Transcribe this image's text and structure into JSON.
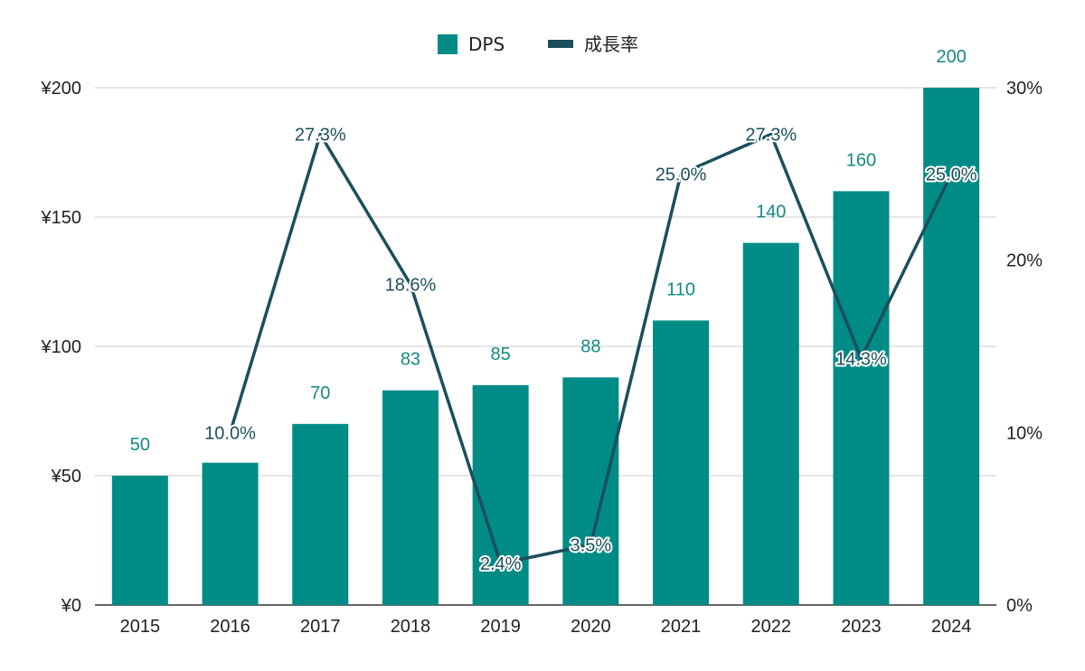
{
  "chart_data": {
    "type": "bar+line",
    "categories": [
      "2015",
      "2016",
      "2017",
      "2018",
      "2019",
      "2020",
      "2021",
      "2022",
      "2023",
      "2024"
    ],
    "series": [
      {
        "name": "DPS",
        "type": "bar",
        "axis": "left",
        "color": "#008c86",
        "values": [
          50,
          55,
          70,
          83,
          85,
          88,
          110,
          140,
          160,
          200
        ],
        "labels": [
          "50",
          "",
          "70",
          "83",
          "85",
          "88",
          "110",
          "140",
          "160",
          "200"
        ]
      },
      {
        "name": "成長率",
        "type": "line",
        "axis": "right",
        "color": "#1b4f5c",
        "values": [
          null,
          10.0,
          27.3,
          18.6,
          2.4,
          3.5,
          25.0,
          27.3,
          14.3,
          25.0
        ],
        "labels": [
          "",
          "10.0%",
          "27.3%",
          "18.6%",
          "2.4%",
          "3.5%",
          "25.0%",
          "27.3%",
          "14.3%",
          "25.0%"
        ]
      }
    ],
    "y_left": {
      "min": 0,
      "max": 200,
      "ticks": [
        0,
        50,
        100,
        150,
        200
      ],
      "tick_labels": [
        "¥0",
        "¥50",
        "¥100",
        "¥150",
        "¥200"
      ]
    },
    "y_right": {
      "min": 0,
      "max": 30,
      "ticks": [
        0,
        10,
        20,
        30
      ],
      "tick_labels": [
        "0%",
        "10%",
        "20%",
        "30%"
      ]
    },
    "grid": true,
    "legend": {
      "position": "top-center",
      "entries": [
        "DPS",
        "成長率"
      ]
    }
  }
}
